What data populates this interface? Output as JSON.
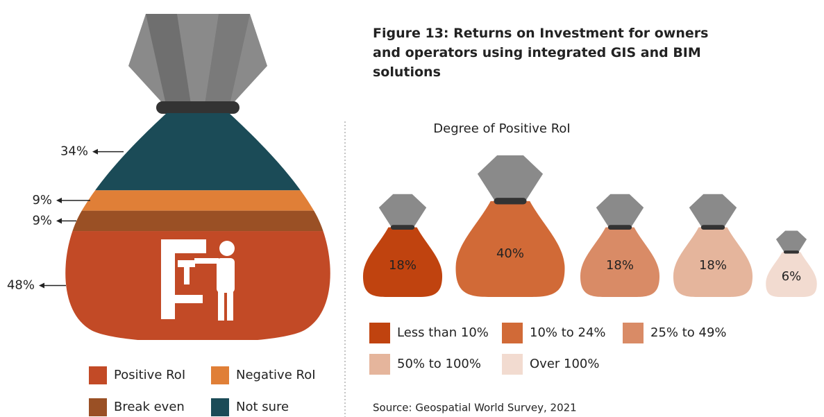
{
  "title": "Figure 13: Returns on Investment for owners and operators using integrated GIS and BIM solutions",
  "source": "Source: Geospatial World Survey, 2021",
  "chart_data": [
    {
      "type": "bag",
      "categories": [
        "Positive RoI",
        "Negative RoI",
        "Break even",
        "Not sure"
      ],
      "values": [
        48,
        9,
        9,
        34
      ],
      "value_labels": [
        "48%",
        "9%",
        "9%",
        "34%"
      ],
      "colors": [
        "#c24a26",
        "#e07f37",
        "#9a5025",
        "#1b4b57"
      ]
    },
    {
      "type": "bags",
      "title": "Degree of Positive RoI",
      "categories": [
        "Less than 10%",
        "10% to 24%",
        "25% to 49%",
        "50% to 100%",
        "Over 100%"
      ],
      "values": [
        18,
        40,
        18,
        18,
        6
      ],
      "value_labels": [
        "18%",
        "40%",
        "18%",
        "18%",
        "6%"
      ],
      "colors": [
        "#c0430f",
        "#d16a37",
        "#d98b66",
        "#e5b59c",
        "#f2dbd0"
      ]
    }
  ]
}
